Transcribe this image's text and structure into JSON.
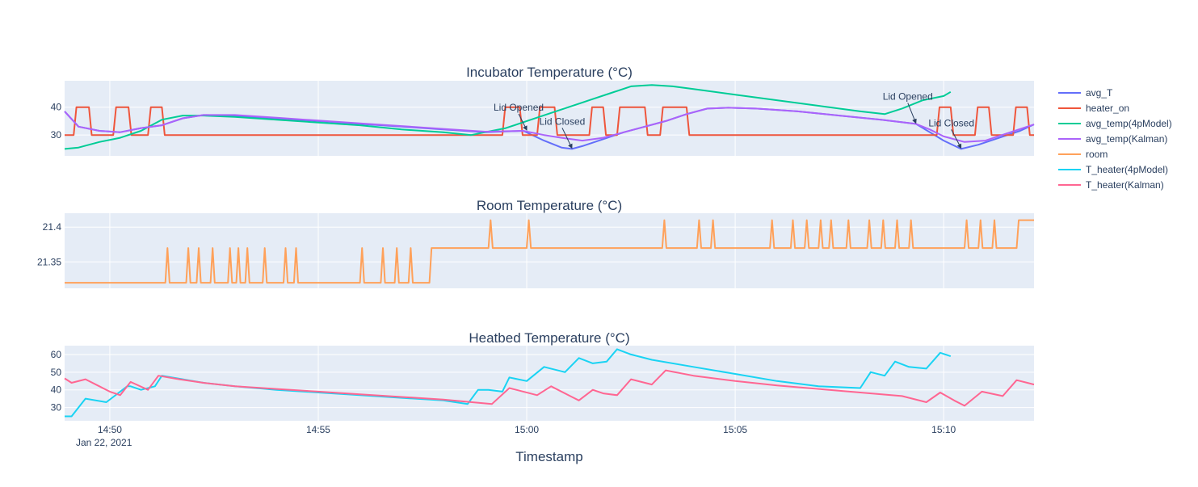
{
  "chart_data": [
    {
      "type": "line",
      "title": "Incubator Temperature (°C)",
      "xlabel": "Timestamp",
      "ylabel": "",
      "x_ticks": [
        "14:50",
        "14:55",
        "15:00",
        "15:05",
        "15:10"
      ],
      "x_tick_sub": "Jan 22, 2021",
      "xlim": [
        "14:48:55",
        "15:12:10"
      ],
      "ylim": [
        22.5,
        49.5
      ],
      "y_ticks": [
        30,
        40
      ],
      "grid": true,
      "legend_placement": "top-right",
      "series": [
        {
          "name": "avg_T",
          "color": "#636efa",
          "x": [
            "14:48:55",
            "14:49:15",
            "14:49:45",
            "14:50:15",
            "14:50:45",
            "14:51:15",
            "14:51:45",
            "14:52:15",
            "14:53:00",
            "14:54:00",
            "14:55:00",
            "14:56:00",
            "14:57:00",
            "14:58:00",
            "14:59:00",
            "14:59:55",
            "15:00:25",
            "15:00:50",
            "15:01:05",
            "15:01:20",
            "15:01:50",
            "15:02:20",
            "15:02:50",
            "15:03:20",
            "15:03:50",
            "15:04:20",
            "15:04:50",
            "15:05:30",
            "15:06:30",
            "15:07:30",
            "15:08:30",
            "15:09:20",
            "15:09:40",
            "15:10:00",
            "15:10:25",
            "15:10:50",
            "15:11:20",
            "15:11:50",
            "15:12:10"
          ],
          "y": [
            38.5,
            33,
            31.5,
            31,
            32.5,
            33.5,
            36,
            37.2,
            37,
            36,
            35,
            34,
            33,
            32,
            31,
            31.5,
            28,
            25.5,
            25,
            26,
            28.5,
            31,
            33,
            35,
            37.5,
            39.5,
            39.8,
            39.5,
            38.5,
            37,
            35.5,
            34,
            31,
            28,
            25,
            26.5,
            29,
            31.5,
            33.8
          ]
        },
        {
          "name": "heater_on",
          "color": "#ef553b",
          "x": [
            "14:48:55",
            "14:49:08",
            "14:49:12",
            "14:49:30",
            "14:49:34",
            "14:50:05",
            "14:50:09",
            "14:50:27",
            "14:50:31",
            "14:50:55",
            "14:50:59",
            "14:51:15",
            "14:51:19",
            "14:59:25",
            "14:59:29",
            "14:59:50",
            "14:59:54",
            "15:00:15",
            "15:00:19",
            "15:00:40",
            "15:00:44",
            "15:01:30",
            "15:01:34",
            "15:01:50",
            "15:01:54",
            "15:02:10",
            "15:02:14",
            "15:02:50",
            "15:02:54",
            "15:03:12",
            "15:03:16",
            "15:03:50",
            "15:03:54",
            "15:09:50",
            "15:09:54",
            "15:10:10",
            "15:10:14",
            "15:10:45",
            "15:10:49",
            "15:11:05",
            "15:11:09",
            "15:11:40",
            "15:11:44",
            "15:12:00",
            "15:12:04",
            "15:12:10"
          ],
          "y": [
            30,
            30,
            40,
            40,
            30,
            30,
            40,
            40,
            30,
            30,
            40,
            40,
            30,
            30,
            40,
            40,
            30,
            30,
            40,
            40,
            30,
            30,
            40,
            40,
            30,
            30,
            40,
            40,
            30,
            30,
            40,
            40,
            30,
            30,
            40,
            40,
            30,
            30,
            40,
            40,
            30,
            30,
            40,
            40,
            30,
            30
          ]
        },
        {
          "name": "avg_temp(4pModel)",
          "color": "#00cc96",
          "x": [
            "14:48:55",
            "14:49:15",
            "14:49:45",
            "14:50:15",
            "14:50:45",
            "14:51:15",
            "14:51:45",
            "14:52:15",
            "14:53:00",
            "14:54:00",
            "14:55:00",
            "14:56:00",
            "14:57:00",
            "14:58:00",
            "14:58:40",
            "14:59:00",
            "14:59:30",
            "15:00:00",
            "15:00:30",
            "15:01:00",
            "15:01:30",
            "15:02:00",
            "15:02:30",
            "15:03:00",
            "15:03:30",
            "15:04:00",
            "15:05:00",
            "15:06:00",
            "15:07:00",
            "15:08:00",
            "15:08:35",
            "15:09:00",
            "15:09:30",
            "15:10:00",
            "15:10:10"
          ],
          "y": [
            25,
            25.5,
            27.5,
            29,
            31.5,
            35.5,
            37,
            37,
            36.5,
            35.5,
            34.5,
            33.5,
            32,
            31,
            30,
            31,
            32.5,
            35,
            37.5,
            40,
            42.5,
            45,
            47.5,
            48,
            47.5,
            46.5,
            44.5,
            42.5,
            40.5,
            38.5,
            37.5,
            39.5,
            42.5,
            44,
            45.5
          ]
        },
        {
          "name": "avg_temp(Kalman)",
          "color": "#ab63fa",
          "x": [
            "14:48:55",
            "14:49:15",
            "14:49:45",
            "14:50:15",
            "14:50:45",
            "14:51:15",
            "14:51:45",
            "14:52:15",
            "14:53:00",
            "14:54:00",
            "14:55:00",
            "14:56:00",
            "14:57:00",
            "14:58:00",
            "14:59:00",
            "14:59:55",
            "15:00:25",
            "15:00:50",
            "15:01:20",
            "15:01:50",
            "15:02:20",
            "15:02:50",
            "15:03:20",
            "15:03:50",
            "15:04:20",
            "15:04:50",
            "15:05:30",
            "15:06:30",
            "15:07:30",
            "15:08:30",
            "15:09:20",
            "15:09:40",
            "15:10:00",
            "15:10:30",
            "15:11:00",
            "15:11:30",
            "15:12:10"
          ],
          "y": [
            38.5,
            33,
            31.5,
            31,
            32.5,
            33.5,
            36,
            37.2,
            37.2,
            36.2,
            35.2,
            34.2,
            33.2,
            32.2,
            31.2,
            31.5,
            30,
            29,
            28,
            29,
            31,
            33,
            35,
            37.5,
            39.5,
            39.8,
            39.5,
            38.5,
            37,
            35.5,
            34,
            32,
            29.5,
            27.5,
            28,
            30.5,
            33.8
          ]
        },
        {
          "name": "room",
          "color": "#ffa15a"
        },
        {
          "name": "T_heater(4pModel)",
          "color": "#19d3f3"
        },
        {
          "name": "T_heater(Kalman)",
          "color": "#ff6692"
        }
      ],
      "annotations": [
        {
          "text": "Lid Opened",
          "x": "15:00:00",
          "y": 31.5
        },
        {
          "text": "Lid Closed",
          "x": "15:01:05",
          "y": 25
        },
        {
          "text": "Lid Opened",
          "x": "15:09:20",
          "y": 34
        },
        {
          "text": "Lid Closed",
          "x": "15:10:25",
          "y": 25
        }
      ]
    },
    {
      "type": "line",
      "title": "Room Temperature (°C)",
      "xlim": [
        "14:48:55",
        "15:12:10"
      ],
      "ylim": [
        21.312,
        21.42
      ],
      "y_ticks": [
        21.35,
        21.4
      ],
      "grid": true,
      "series": [
        {
          "name": "room",
          "color": "#ffa15a",
          "x": [
            "14:48:55",
            "14:51:20",
            "14:51:23",
            "14:51:26",
            "14:51:50",
            "14:51:53",
            "14:51:56",
            "14:52:05",
            "14:52:08",
            "14:52:11",
            "14:52:25",
            "14:52:28",
            "14:52:31",
            "14:52:50",
            "14:52:53",
            "14:52:56",
            "14:53:02",
            "14:53:05",
            "14:53:08",
            "14:53:15",
            "14:53:18",
            "14:53:21",
            "14:53:40",
            "14:53:43",
            "14:53:46",
            "14:54:10",
            "14:54:13",
            "14:54:16",
            "14:54:25",
            "14:54:28",
            "14:54:31",
            "14:56:00",
            "14:56:03",
            "14:56:06",
            "14:56:30",
            "14:56:33",
            "14:56:36",
            "14:56:50",
            "14:56:53",
            "14:56:56",
            "14:57:10",
            "14:57:13",
            "14:57:16",
            "14:57:40",
            "14:57:43",
            "14:58:10",
            "14:58:13",
            "14:59:05",
            "14:59:08",
            "14:59:11",
            "15:00:00",
            "15:00:03",
            "15:00:06",
            "15:03:15",
            "15:03:18",
            "15:03:21",
            "15:04:05",
            "15:04:08",
            "15:04:11",
            "15:04:25",
            "15:04:28",
            "15:04:31",
            "15:05:50",
            "15:05:53",
            "15:05:56",
            "15:06:20",
            "15:06:23",
            "15:06:26",
            "15:06:40",
            "15:06:43",
            "15:06:46",
            "15:07:00",
            "15:07:03",
            "15:07:06",
            "15:07:15",
            "15:07:18",
            "15:07:21",
            "15:07:40",
            "15:07:43",
            "15:07:46",
            "15:08:10",
            "15:08:13",
            "15:08:16",
            "15:08:30",
            "15:08:33",
            "15:08:36",
            "15:08:50",
            "15:08:53",
            "15:08:56",
            "15:09:10",
            "15:09:13",
            "15:09:16",
            "15:10:30",
            "15:10:33",
            "15:10:36",
            "15:10:50",
            "15:10:53",
            "15:10:56",
            "15:11:10",
            "15:11:13",
            "15:11:16",
            "15:11:45",
            "15:11:48",
            "15:12:10"
          ],
          "y": [
            21.32,
            21.32,
            21.37,
            21.32,
            21.32,
            21.37,
            21.32,
            21.32,
            21.37,
            21.32,
            21.32,
            21.37,
            21.32,
            21.32,
            21.37,
            21.32,
            21.32,
            21.37,
            21.32,
            21.32,
            21.37,
            21.32,
            21.32,
            21.37,
            21.32,
            21.32,
            21.37,
            21.32,
            21.32,
            21.37,
            21.32,
            21.32,
            21.37,
            21.32,
            21.32,
            21.37,
            21.32,
            21.32,
            21.37,
            21.32,
            21.32,
            21.37,
            21.32,
            21.32,
            21.37,
            21.37,
            21.37,
            21.37,
            21.41,
            21.37,
            21.37,
            21.41,
            21.37,
            21.37,
            21.41,
            21.37,
            21.37,
            21.41,
            21.37,
            21.37,
            21.41,
            21.37,
            21.37,
            21.41,
            21.37,
            21.37,
            21.41,
            21.37,
            21.37,
            21.41,
            21.37,
            21.37,
            21.41,
            21.37,
            21.37,
            21.41,
            21.37,
            21.37,
            21.41,
            21.37,
            21.37,
            21.41,
            21.37,
            21.37,
            21.41,
            21.37,
            21.37,
            21.41,
            21.37,
            21.37,
            21.41,
            21.37,
            21.37,
            21.41,
            21.37,
            21.37,
            21.41,
            21.37,
            21.37,
            21.41,
            21.37,
            21.37,
            21.41,
            21.41
          ]
        }
      ]
    },
    {
      "type": "line",
      "title": "Heatbed Temperature (°C)",
      "xlim": [
        "14:48:55",
        "15:12:10"
      ],
      "ylim": [
        22.5,
        65
      ],
      "y_ticks": [
        30,
        40,
        50,
        60
      ],
      "grid": true,
      "series": [
        {
          "name": "T_heater(4pModel)",
          "color": "#19d3f3",
          "x": [
            "14:48:55",
            "14:49:05",
            "14:49:25",
            "14:49:55",
            "14:50:05",
            "14:50:25",
            "14:50:30",
            "14:50:45",
            "14:51:05",
            "14:51:15",
            "14:51:45",
            "14:52:15",
            "14:53:00",
            "14:54:00",
            "14:55:00",
            "14:56:00",
            "14:57:00",
            "14:58:00",
            "14:58:35",
            "14:58:50",
            "14:59:05",
            "14:59:25",
            "14:59:35",
            "15:00:00",
            "15:00:25",
            "15:00:55",
            "15:01:15",
            "15:01:35",
            "15:01:55",
            "15:02:10",
            "15:02:30",
            "15:03:00",
            "15:04:00",
            "15:05:00",
            "15:06:00",
            "15:07:00",
            "15:08:00",
            "15:08:15",
            "15:08:35",
            "15:08:50",
            "15:09:10",
            "15:09:35",
            "15:09:55",
            "15:10:10"
          ],
          "y": [
            25,
            25,
            35,
            33,
            36,
            42,
            42,
            40,
            42,
            48,
            46,
            44,
            42,
            40,
            38.5,
            37,
            35.5,
            34,
            32,
            40,
            40,
            39,
            47,
            45,
            53,
            50,
            58,
            55,
            56,
            63,
            60,
            57,
            53,
            49,
            45,
            42,
            41,
            50,
            48,
            56,
            53,
            52,
            61,
            59
          ]
        },
        {
          "name": "T_heater(Kalman)",
          "color": "#ff6692",
          "x": [
            "14:48:55",
            "14:49:05",
            "14:49:25",
            "14:49:45",
            "14:50:00",
            "14:50:15",
            "14:50:30",
            "14:50:55",
            "14:51:10",
            "14:51:40",
            "14:52:15",
            "14:53:00",
            "14:54:00",
            "14:55:00",
            "14:56:00",
            "14:57:00",
            "14:58:00",
            "14:59:10",
            "14:59:35",
            "15:00:15",
            "15:00:35",
            "15:01:05",
            "15:01:15",
            "15:01:35",
            "15:01:50",
            "15:02:10",
            "15:02:30",
            "15:03:00",
            "15:03:20",
            "15:04:00",
            "15:05:00",
            "15:06:00",
            "15:07:00",
            "15:08:00",
            "15:09:00",
            "15:09:35",
            "15:09:55",
            "15:10:15",
            "15:10:30",
            "15:10:55",
            "15:11:25",
            "15:11:45",
            "15:12:10"
          ],
          "y": [
            46.5,
            44,
            46,
            42,
            39,
            37,
            44.5,
            40,
            48,
            46,
            44,
            42,
            40.5,
            39,
            37.5,
            36,
            34.5,
            32,
            41,
            37,
            42,
            36,
            34,
            40,
            38,
            37,
            46,
            43,
            51,
            48,
            45,
            42.5,
            40.5,
            38.5,
            36.5,
            33,
            38.5,
            34,
            31,
            39,
            36.5,
            45.5,
            43
          ]
        }
      ]
    }
  ]
}
